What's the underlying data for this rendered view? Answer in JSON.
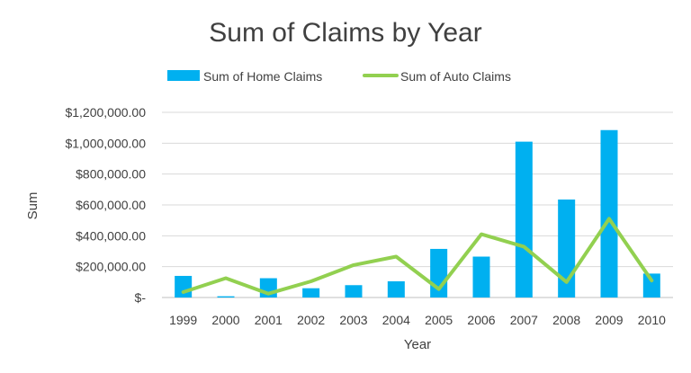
{
  "chart_data": {
    "type": "bar",
    "title": "Sum of Claims by Year",
    "xlabel": "Year",
    "ylabel": "Sum",
    "categories": [
      "1999",
      "2000",
      "2001",
      "2002",
      "2003",
      "2004",
      "2005",
      "2006",
      "2007",
      "2008",
      "2009",
      "2010"
    ],
    "series": [
      {
        "name": "Sum of Home Claims",
        "type": "bar",
        "color": "#00b0f0",
        "values": [
          140000,
          8000,
          125000,
          60000,
          80000,
          105000,
          315000,
          265000,
          1010000,
          635000,
          1085000,
          155000
        ]
      },
      {
        "name": "Sum of Auto Claims",
        "type": "line",
        "color": "#92d050",
        "values": [
          35000,
          125000,
          25000,
          105000,
          210000,
          265000,
          55000,
          410000,
          330000,
          100000,
          510000,
          110000
        ]
      }
    ],
    "ylim": [
      0,
      1200000
    ],
    "yticks": [
      {
        "value": 0,
        "label": "$-"
      },
      {
        "value": 200000,
        "label": "$200,000.00"
      },
      {
        "value": 400000,
        "label": "$400,000.00"
      },
      {
        "value": 600000,
        "label": "$600,000.00"
      },
      {
        "value": 800000,
        "label": "$800,000.00"
      },
      {
        "value": 1000000,
        "label": "$1,000,000.00"
      },
      {
        "value": 1200000,
        "label": "$1,200,000.00"
      }
    ],
    "grid": true,
    "gridColor": "#d9d9d9",
    "legend": "top"
  }
}
